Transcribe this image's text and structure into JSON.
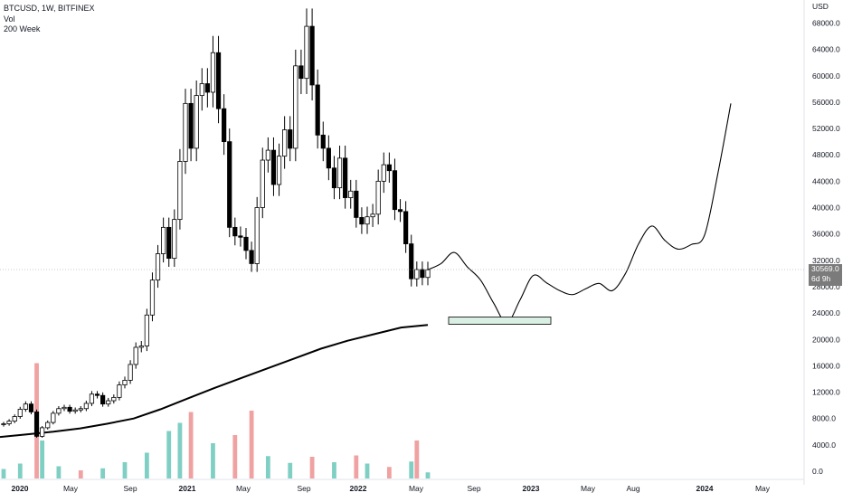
{
  "legend": {
    "symbol_line": "BTCUSD, 1W, BITFINEX",
    "indicator_1": "Vol",
    "indicator_2": "200 Week"
  },
  "price_tag": {
    "price": "30569.0",
    "countdown": "6d 9h"
  },
  "colors": {
    "background": "#ffffff",
    "candle_up": "#ffffff",
    "candle_down": "#000000",
    "volume_up": "#7fcfc4",
    "volume_down": "#f0a1a1",
    "ma_line": "#000000",
    "projection_box_fill": "#d9efe4",
    "axis_text": "#131722",
    "price_tag_bg": "#7b7b7b"
  },
  "chart_data": {
    "type": "candlestick",
    "title": "BTCUSD, 1W, BITFINEX",
    "y_axis_unit": "USD",
    "y_ticks": [
      "68000.0",
      "64000.0",
      "60000.0",
      "56000.0",
      "52000.0",
      "48000.0",
      "44000.0",
      "40000.0",
      "36000.0",
      "32000.0",
      "28000.0",
      "24000.0",
      "20000.0",
      "16000.0",
      "12000.0",
      "8000.0",
      "4000.0",
      "0.0"
    ],
    "x_ticks": [
      "2020",
      "May",
      "Sep",
      "2021",
      "May",
      "Sep",
      "2022",
      "May",
      "Sep",
      "2023",
      "May",
      "Aug",
      "2024",
      "May"
    ],
    "ylim": [
      0,
      70000
    ],
    "grid": false,
    "current_price": 30569.0,
    "price_series": [
      7200,
      7600,
      8300,
      9400,
      10200,
      9000,
      5300,
      6600,
      7400,
      8800,
      9500,
      9700,
      9100,
      9300,
      9500,
      10300,
      11700,
      11500,
      10200,
      10700,
      11200,
      13100,
      13800,
      16200,
      18800,
      19000,
      23700,
      29000,
      33000,
      37000,
      32300,
      38200,
      47000,
      55800,
      49000,
      57000,
      58800,
      57500,
      63500,
      55000,
      50000,
      37000,
      35700,
      35500,
      33500,
      31500,
      40000,
      47200,
      48700,
      43500,
      47800,
      51800,
      49000,
      61500,
      59600,
      67500,
      58600,
      51000,
      49000,
      46000,
      43000,
      47500,
      41500,
      42500,
      38500,
      37500,
      38600,
      39000,
      44000,
      46500,
      45600,
      39700,
      39400,
      34500,
      29200,
      30600,
      29400,
      30569
    ],
    "volume_series": [
      {
        "t": 0,
        "v": 1400,
        "up": true
      },
      {
        "t": 3,
        "v": 2200,
        "up": true
      },
      {
        "t": 6,
        "v": 17000,
        "up": false
      },
      {
        "t": 7,
        "v": 5600,
        "up": true
      },
      {
        "t": 10,
        "v": 1800,
        "up": true
      },
      {
        "t": 14,
        "v": 1200,
        "up": false
      },
      {
        "t": 18,
        "v": 1500,
        "up": true
      },
      {
        "t": 22,
        "v": 2400,
        "up": true
      },
      {
        "t": 26,
        "v": 3800,
        "up": true
      },
      {
        "t": 30,
        "v": 7000,
        "up": true
      },
      {
        "t": 32,
        "v": 8200,
        "up": true
      },
      {
        "t": 34,
        "v": 9800,
        "up": false
      },
      {
        "t": 38,
        "v": 5200,
        "up": true
      },
      {
        "t": 42,
        "v": 6400,
        "up": false
      },
      {
        "t": 45,
        "v": 10000,
        "up": false
      },
      {
        "t": 48,
        "v": 3300,
        "up": true
      },
      {
        "t": 52,
        "v": 2300,
        "up": true
      },
      {
        "t": 56,
        "v": 3200,
        "up": false
      },
      {
        "t": 60,
        "v": 2400,
        "up": true
      },
      {
        "t": 64,
        "v": 3400,
        "up": false
      },
      {
        "t": 66,
        "v": 2200,
        "up": true
      },
      {
        "t": 70,
        "v": 1700,
        "up": false
      },
      {
        "t": 74,
        "v": 2500,
        "up": true
      },
      {
        "t": 75,
        "v": 5600,
        "up": false
      },
      {
        "t": 77,
        "v": 900,
        "up": true
      }
    ],
    "ma_200_week": [
      5200,
      5600,
      6000,
      6500,
      7200,
      8000,
      9400,
      11000,
      12600,
      14100,
      15600,
      17100,
      18600,
      19800,
      20800,
      21800,
      22200
    ],
    "projection_path": [
      30569,
      31500,
      33200,
      31000,
      29000,
      25500,
      22500,
      26000,
      29700,
      28600,
      27400,
      26800,
      27700,
      28500,
      27400,
      30000,
      34500,
      37200,
      35000,
      33700,
      34400,
      35800,
      45000,
      55800
    ],
    "support_box": {
      "low": 22300,
      "high": 23400
    }
  }
}
